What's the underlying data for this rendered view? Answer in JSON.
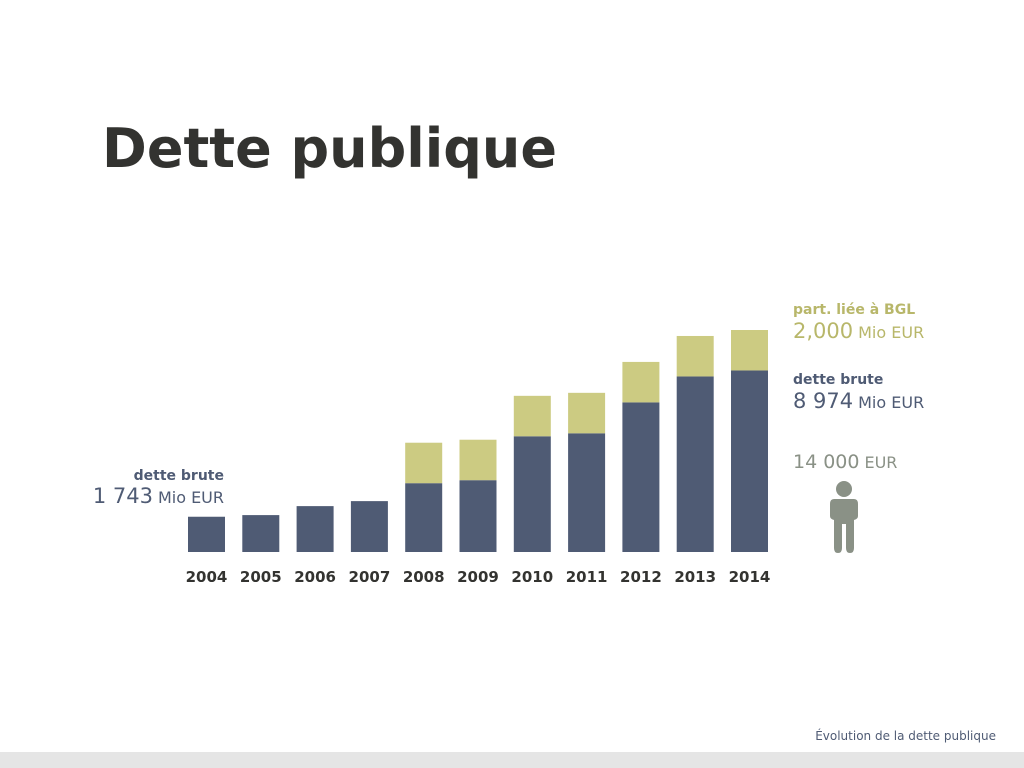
{
  "chart_data": {
    "type": "stacked-bar",
    "title": "Dette publique",
    "categories": [
      "2004",
      "2005",
      "2006",
      "2007",
      "2008",
      "2009",
      "2010",
      "2011",
      "2012",
      "2013",
      "2014"
    ],
    "series": [
      {
        "name": "dette brute",
        "color": "#4f5b74",
        "values": [
          1743,
          1824,
          2268,
          2515,
          3402,
          3550,
          5720,
          5868,
          7396,
          8679,
          8974
        ]
      },
      {
        "name": "part. liée à BGL",
        "color": "#cccb82",
        "values": [
          null,
          null,
          null,
          null,
          2000,
          2000,
          2000,
          2000,
          2000,
          2000,
          2000
        ]
      }
    ],
    "annotations": {
      "start": {
        "amount": "1 743",
        "unit": "Mio EUR"
      },
      "bgl": {
        "amount": "2,000",
        "unit": "Mio EUR"
      },
      "end": {
        "amount": "8 974",
        "unit": "Mio EUR"
      },
      "per_person": {
        "amount": "14 000",
        "unit": "EUR"
      }
    },
    "footer": "Évolution de la dette publique"
  }
}
